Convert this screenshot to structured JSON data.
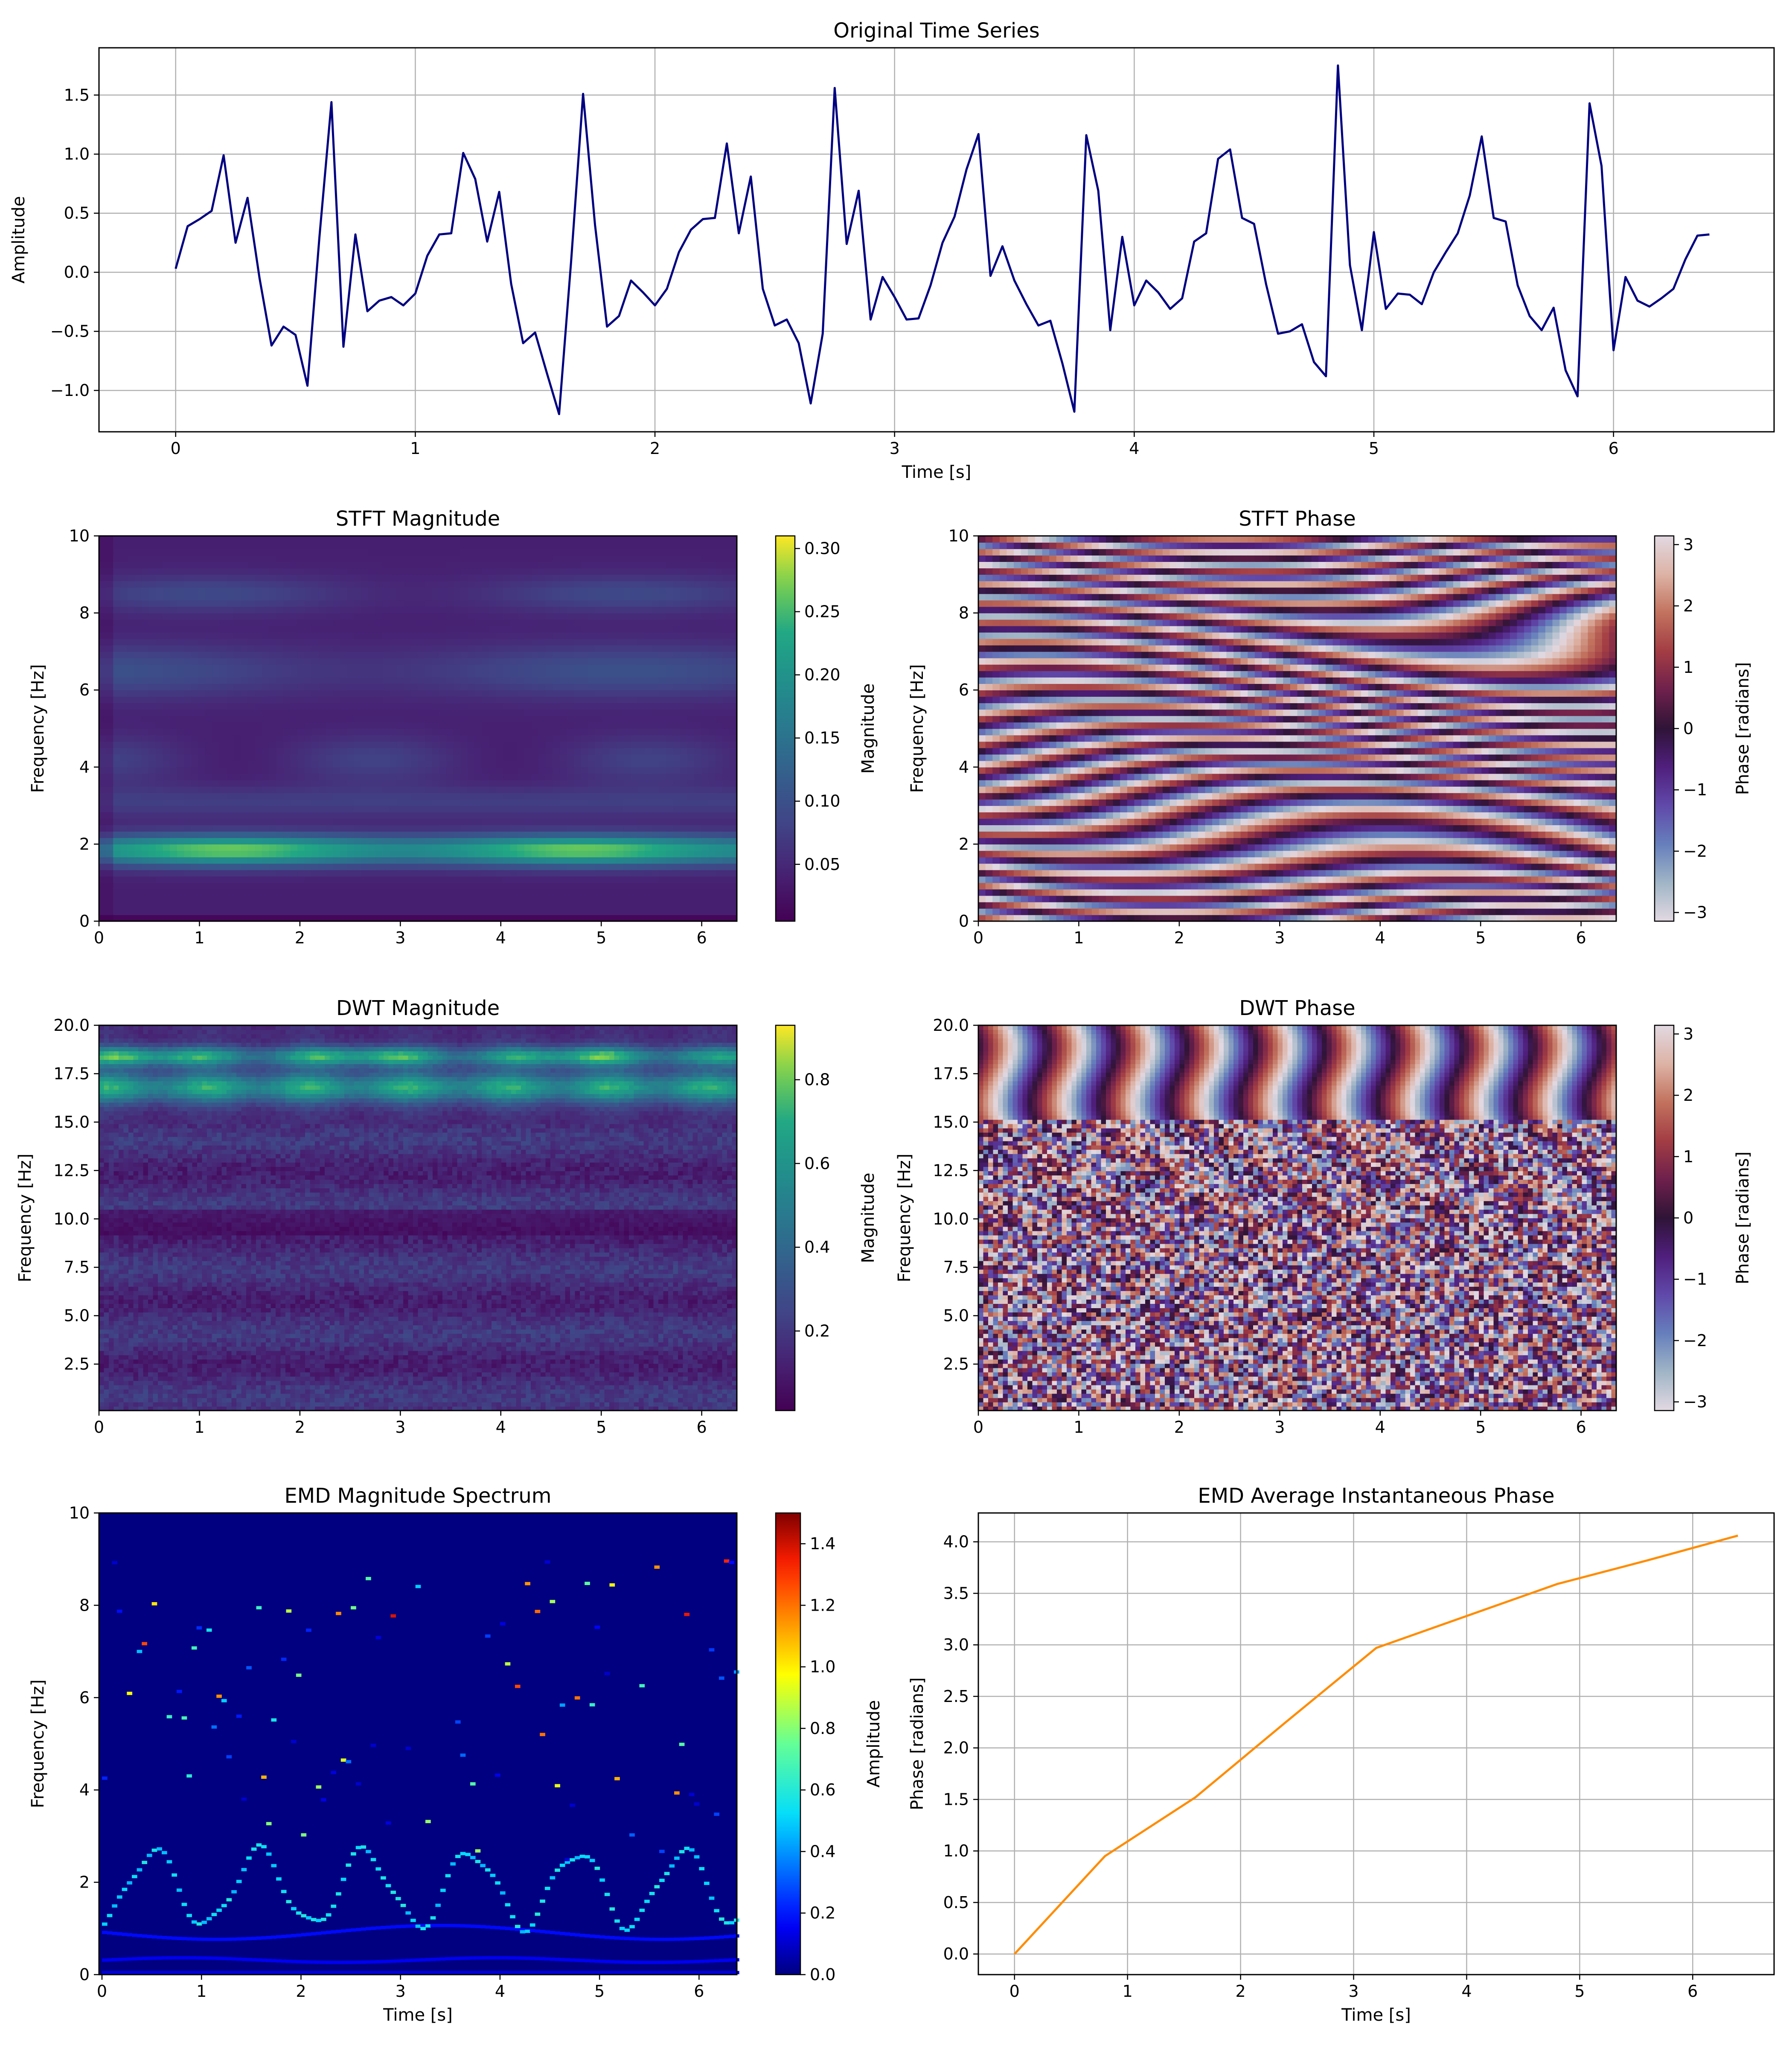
{
  "chart_data": [
    {
      "id": "ts",
      "type": "line",
      "title": "Original Time Series",
      "xlabel": "Time [s]",
      "ylabel": "Amplitude",
      "xlim": [
        -0.32,
        6.67
      ],
      "ylim": [
        -1.35,
        1.9
      ],
      "xticks": [
        0,
        1,
        2,
        3,
        4,
        5,
        6
      ],
      "yticks": [
        -1.0,
        -0.5,
        0.0,
        0.5,
        1.0,
        1.5
      ],
      "ytick_labels": [
        "−1.0",
        "−0.5",
        "0.0",
        "0.5",
        "1.0",
        "1.5"
      ],
      "grid": true,
      "color": "#000080",
      "dt": 0.05,
      "values": [
        0.03,
        0.39,
        0.45,
        0.52,
        0.99,
        0.25,
        0.63,
        -0.05,
        -0.62,
        -0.46,
        -0.53,
        -0.96,
        0.3,
        1.44,
        -0.63,
        0.32,
        -0.33,
        -0.24,
        -0.21,
        -0.28,
        -0.18,
        0.14,
        0.32,
        0.33,
        1.01,
        0.79,
        0.26,
        0.68,
        -0.1,
        -0.6,
        -0.51,
        -0.86,
        -1.2,
        0.09,
        1.51,
        0.4,
        -0.46,
        -0.37,
        -0.07,
        -0.17,
        -0.28,
        -0.14,
        0.17,
        0.36,
        0.45,
        0.46,
        1.09,
        0.33,
        0.81,
        -0.14,
        -0.45,
        -0.4,
        -0.6,
        -1.11,
        -0.52,
        1.56,
        0.24,
        0.69,
        -0.4,
        -0.04,
        -0.21,
        -0.4,
        -0.39,
        -0.11,
        0.25,
        0.47,
        0.87,
        1.17,
        -0.03,
        0.22,
        -0.07,
        -0.27,
        -0.45,
        -0.41,
        -0.77,
        -1.18,
        1.16,
        0.69,
        -0.49,
        0.3,
        -0.28,
        -0.07,
        -0.17,
        -0.31,
        -0.22,
        0.26,
        0.33,
        0.96,
        1.04,
        0.46,
        0.41,
        -0.1,
        -0.52,
        -0.5,
        -0.44,
        -0.76,
        -0.88,
        1.75,
        0.06,
        -0.49,
        0.34,
        -0.31,
        -0.18,
        -0.19,
        -0.27,
        0.0,
        0.17,
        0.33,
        0.65,
        1.15,
        0.46,
        0.43,
        -0.11,
        -0.37,
        -0.49,
        -0.3,
        -0.83,
        -1.05,
        1.43,
        0.9,
        -0.66,
        -0.04,
        -0.24,
        -0.29,
        -0.22,
        -0.14,
        0.11,
        0.31,
        0.32
      ]
    },
    {
      "id": "stft_mag",
      "type": "heatmap",
      "title": "STFT Magnitude",
      "xlabel": "",
      "ylabel": "Frequency [Hz]",
      "xlim": [
        0,
        6.35
      ],
      "ylim": [
        0,
        10
      ],
      "xticks": [
        0,
        1,
        2,
        3,
        4,
        5,
        6
      ],
      "yticks": [
        0,
        2,
        4,
        6,
        8,
        10
      ],
      "colormap": "viridis",
      "colorbar": {
        "label": "Magnitude",
        "range": [
          0.005,
          0.31
        ],
        "ticks": [
          0.05,
          0.1,
          0.15,
          0.2,
          0.25,
          0.3
        ],
        "tick_labels": [
          "0.05",
          "0.10",
          "0.15",
          "0.20",
          "0.25",
          "0.30"
        ]
      }
    },
    {
      "id": "stft_phase",
      "type": "heatmap",
      "title": "STFT Phase",
      "xlabel": "",
      "ylabel": "Frequency [Hz]",
      "xlim": [
        0,
        6.35
      ],
      "ylim": [
        0,
        10
      ],
      "xticks": [
        0,
        1,
        2,
        3,
        4,
        5,
        6
      ],
      "yticks": [
        0,
        2,
        4,
        6,
        8,
        10
      ],
      "colormap": "twilight",
      "colorbar": {
        "label": "Phase [radians]",
        "range": [
          -3.1416,
          3.1416
        ],
        "ticks": [
          -3,
          -2,
          -1,
          0,
          1,
          2,
          3
        ],
        "tick_labels": [
          "−3",
          "−2",
          "−1",
          "0",
          "1",
          "2",
          "3"
        ]
      }
    },
    {
      "id": "dwt_mag",
      "type": "heatmap",
      "title": "DWT Magnitude",
      "xlabel": "",
      "ylabel": "Frequency [Hz]",
      "xlim": [
        0,
        6.35
      ],
      "ylim": [
        0.1,
        20
      ],
      "xticks": [
        0,
        1,
        2,
        3,
        4,
        5,
        6
      ],
      "yticks": [
        2.5,
        5.0,
        7.5,
        10.0,
        12.5,
        15.0,
        17.5,
        20.0
      ],
      "ytick_labels": [
        "2.5",
        "5.0",
        "7.5",
        "10.0",
        "12.5",
        "15.0",
        "17.5",
        "20.0"
      ],
      "colormap": "viridis",
      "colorbar": {
        "label": "Magnitude",
        "range": [
          0.01,
          0.93
        ],
        "ticks": [
          0.2,
          0.4,
          0.6,
          0.8
        ],
        "tick_labels": [
          "0.2",
          "0.4",
          "0.6",
          "0.8"
        ]
      }
    },
    {
      "id": "dwt_phase",
      "type": "heatmap",
      "title": "DWT Phase",
      "xlabel": "",
      "ylabel": "Frequency [Hz]",
      "xlim": [
        0,
        6.35
      ],
      "ylim": [
        0.1,
        20
      ],
      "xticks": [
        0,
        1,
        2,
        3,
        4,
        5,
        6
      ],
      "yticks": [
        2.5,
        5.0,
        7.5,
        10.0,
        12.5,
        15.0,
        17.5,
        20.0
      ],
      "ytick_labels": [
        "2.5",
        "5.0",
        "7.5",
        "10.0",
        "12.5",
        "15.0",
        "17.5",
        "20.0"
      ],
      "colormap": "twilight",
      "colorbar": {
        "label": "Phase [radians]",
        "range": [
          -3.1416,
          3.1416
        ],
        "ticks": [
          -3,
          -2,
          -1,
          0,
          1,
          2,
          3
        ],
        "tick_labels": [
          "−3",
          "−2",
          "−1",
          "0",
          "1",
          "2",
          "3"
        ]
      }
    },
    {
      "id": "emd_mag",
      "type": "heatmap",
      "title": "EMD Magnitude Spectrum",
      "xlabel": "Time [s]",
      "ylabel": "Frequency [Hz]",
      "xlim": [
        -0.03,
        6.38
      ],
      "ylim": [
        0,
        10
      ],
      "xticks": [
        0,
        1,
        2,
        3,
        4,
        5,
        6
      ],
      "yticks": [
        0,
        2,
        4,
        6,
        8,
        10
      ],
      "colormap": "jet",
      "colorbar": {
        "label": "Amplitude",
        "range": [
          0,
          1.5
        ],
        "ticks": [
          0.0,
          0.2,
          0.4,
          0.6,
          0.8,
          1.0,
          1.2,
          1.4
        ],
        "tick_labels": [
          "0.0",
          "0.2",
          "0.4",
          "0.6",
          "0.8",
          "1.0",
          "1.2",
          "1.4"
        ]
      }
    },
    {
      "id": "emd_phase",
      "type": "line",
      "title": "EMD Average Instantaneous Phase",
      "xlabel": "Time [s]",
      "ylabel": "Phase [radians]",
      "xlim": [
        -0.32,
        6.72
      ],
      "ylim": [
        -0.2,
        4.28
      ],
      "xticks": [
        0,
        1,
        2,
        3,
        4,
        5,
        6
      ],
      "yticks": [
        0.0,
        0.5,
        1.0,
        1.5,
        2.0,
        2.5,
        3.0,
        3.5,
        4.0
      ],
      "ytick_labels": [
        "0.0",
        "0.5",
        "1.0",
        "1.5",
        "2.0",
        "2.5",
        "3.0",
        "3.5",
        "4.0"
      ],
      "grid": true,
      "color": "#ff8c00",
      "x": [
        0,
        0.8,
        1.6,
        2.4,
        3.2,
        4.0,
        4.8,
        5.6,
        6.4
      ],
      "y": [
        0,
        0.95,
        1.52,
        2.25,
        2.97,
        3.28,
        3.59,
        3.82,
        4.06
      ]
    }
  ]
}
